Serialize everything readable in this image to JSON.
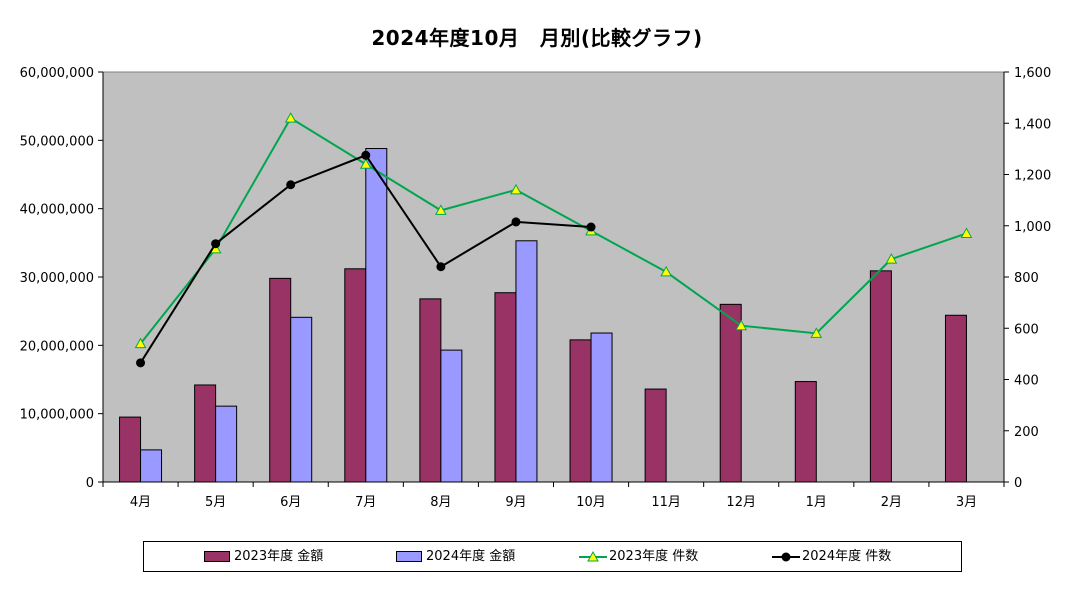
{
  "chart_data": {
    "type": "bar",
    "title": "2024年度10月　月別(比較グラフ)",
    "categories": [
      "4月",
      "5月",
      "6月",
      "7月",
      "8月",
      "9月",
      "10月",
      "11月",
      "12月",
      "1月",
      "2月",
      "3月"
    ],
    "series": [
      {
        "name": "2023年度 金額",
        "kind": "bar",
        "axis": "left",
        "color": "#993366",
        "values": [
          9500000,
          14200000,
          29800000,
          31200000,
          26800000,
          27700000,
          20800000,
          13600000,
          26000000,
          14700000,
          30900000,
          24400000
        ]
      },
      {
        "name": "2024年度 金額",
        "kind": "bar",
        "axis": "left",
        "color": "#9999ff",
        "values": [
          4700000,
          11100000,
          24100000,
          48800000,
          19300000,
          35300000,
          21800000,
          null,
          null,
          null,
          null,
          null
        ]
      },
      {
        "name": "2023年度 件数",
        "kind": "line",
        "axis": "right",
        "color": "#00a64f",
        "marker": "triangle",
        "marker_color": "#ffff00",
        "values": [
          540,
          910,
          1420,
          1240,
          1060,
          1140,
          980,
          820,
          610,
          580,
          870,
          970
        ]
      },
      {
        "name": "2024年度 件数",
        "kind": "line",
        "axis": "right",
        "color": "#000000",
        "marker": "circle",
        "marker_color": "#000000",
        "values": [
          465,
          930,
          1160,
          1275,
          840,
          1015,
          995,
          null,
          null,
          null,
          null,
          null
        ]
      }
    ],
    "ylim_left": [
      0,
      60000000
    ],
    "yticks_left": [
      "0",
      "10,000,000",
      "20,000,000",
      "30,000,000",
      "40,000,000",
      "50,000,000",
      "60,000,000"
    ],
    "ylim_right": [
      0,
      1600
    ],
    "yticks_right": [
      "0",
      "200",
      "400",
      "600",
      "800",
      "1,000",
      "1,200",
      "1,400",
      "1,600"
    ],
    "plot_background": "#c0c0c0",
    "grid": false,
    "legend_position": "bottom"
  }
}
